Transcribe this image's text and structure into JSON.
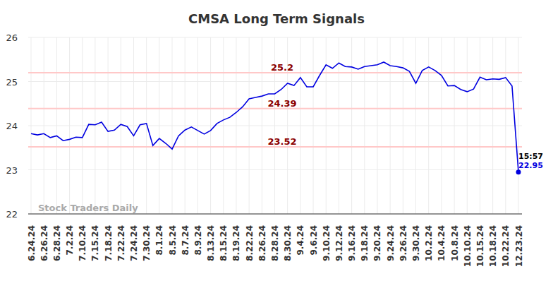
{
  "chart_data": {
    "type": "line",
    "title": "CMSA Long Term Signals",
    "categories": [
      "6.24.24",
      null,
      "6.26.24",
      null,
      "6.28.24",
      null,
      "7.2.24",
      null,
      "7.10.24",
      null,
      "7.15.24",
      null,
      "7.18.24",
      null,
      "7.22.24",
      null,
      "7.24.24",
      null,
      "7.30.24",
      null,
      "8.1.24",
      null,
      "8.5.24",
      null,
      "8.7.24",
      null,
      "8.9.24",
      null,
      "8.13.24",
      null,
      "8.15.24",
      null,
      "8.19.24",
      null,
      "8.22.24",
      null,
      "8.26.24",
      null,
      "8.28.24",
      null,
      "8.30.24",
      null,
      "9.4.24",
      null,
      "9.6.24",
      null,
      "9.10.24",
      null,
      "9.12.24",
      null,
      "9.16.24",
      null,
      "9.18.24",
      null,
      "9.20.24",
      null,
      "9.24.24",
      null,
      "9.26.24",
      null,
      "9.30.24",
      null,
      "10.2.24",
      null,
      "10.4.24",
      null,
      "10.8.24",
      null,
      "10.10.24",
      null,
      "10.15.24",
      null,
      "10.18.24",
      null,
      "10.22.24",
      null,
      "12.23.24"
    ],
    "values": [
      23.82,
      23.79,
      23.82,
      23.73,
      23.77,
      23.66,
      23.69,
      23.74,
      23.73,
      24.03,
      24.02,
      24.08,
      23.87,
      23.9,
      24.03,
      23.98,
      23.77,
      24.02,
      24.05,
      23.55,
      23.71,
      23.6,
      23.47,
      23.77,
      23.9,
      23.97,
      23.89,
      23.81,
      23.89,
      24.05,
      24.13,
      24.19,
      24.3,
      24.43,
      24.61,
      24.64,
      24.67,
      24.72,
      24.72,
      24.82,
      24.96,
      24.91,
      25.09,
      24.88,
      24.88,
      25.14,
      25.38,
      25.3,
      25.42,
      25.34,
      25.33,
      25.28,
      25.34,
      25.36,
      25.38,
      25.44,
      25.36,
      25.34,
      25.31,
      25.23,
      24.96,
      25.25,
      25.33,
      25.25,
      25.14,
      24.9,
      24.91,
      24.82,
      24.77,
      24.83,
      25.1,
      25.04,
      25.06,
      25.05,
      25.09,
      24.9,
      22.95
    ],
    "color": "#0000e0",
    "ylim": [
      22,
      26
    ],
    "yticks": [
      22,
      23,
      24,
      25,
      26
    ],
    "grid": true,
    "reference_lines": [
      {
        "value": 25.2,
        "label": "25.2"
      },
      {
        "value": 24.39,
        "label": "24.39"
      },
      {
        "value": 23.52,
        "label": "23.52"
      }
    ],
    "last_point": {
      "time": "15:57",
      "label": "22.95"
    },
    "watermark": "Stock Traders Daily"
  }
}
